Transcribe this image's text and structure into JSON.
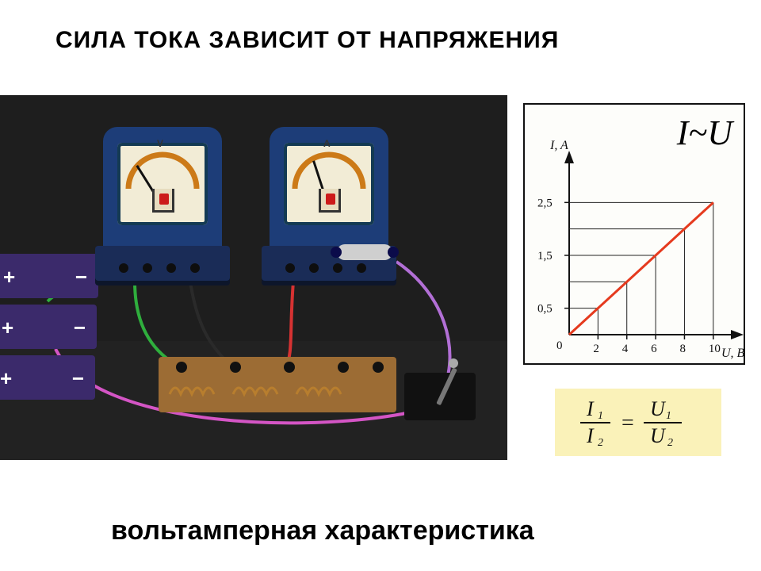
{
  "title": "СИЛА ТОКА  ЗАВИСИТ  ОТ НАПРЯЖЕНИЯ",
  "caption": "вольтамперная    характеристика",
  "relation_text": "I~U",
  "scene": {
    "background": "#1e1e1e",
    "batteries": {
      "fill": "#3b2a6b",
      "sign_color": "#ffffff",
      "plus": "+",
      "minus": "−",
      "count": 3
    },
    "meters": [
      {
        "letter": "V",
        "needle_deg": -32
      },
      {
        "letter": "A",
        "needle_deg": -18
      }
    ],
    "meter_colors": {
      "case": "#1d3d78",
      "base": "#1a2c57",
      "screen": "#f2ecd6",
      "arc": "#cc7a18"
    },
    "board_color": "#9c6c34",
    "coil_color": "#b87e2e",
    "wire_colors": {
      "green": "#2fae3d",
      "red": "#d63232",
      "black": "#2a2a2a",
      "purple": "#b26fd6",
      "magenta": "#d455c5",
      "white": "#e5e5e5"
    }
  },
  "chart": {
    "type": "line",
    "y_label": "I, A",
    "x_label": "U, B",
    "origin_label": "0",
    "x_ticks": [
      2,
      4,
      6,
      8,
      10
    ],
    "y_ticks": [
      0.5,
      1.5,
      2.5
    ],
    "y_tick_labels": [
      "0,5",
      "1,5",
      "2,5"
    ],
    "xlim": [
      0,
      11
    ],
    "ylim": [
      0,
      3
    ],
    "line_color": "#e53a1e",
    "line_width": 3,
    "guide_color": "#222222",
    "axis_color": "#111111",
    "background": "#fdfdfa",
    "label_fontsize": 16,
    "tick_fontsize": 15,
    "points": [
      {
        "x": 0,
        "y": 0
      },
      {
        "x": 2,
        "y": 0.5
      },
      {
        "x": 4,
        "y": 1.0
      },
      {
        "x": 6,
        "y": 1.5
      },
      {
        "x": 8,
        "y": 2.0
      },
      {
        "x": 10,
        "y": 2.5
      }
    ]
  },
  "formula": {
    "background": "#faf2b9",
    "text_color": "#111111",
    "I1": "I",
    "I1_sub": "1",
    "I2": "I",
    "I2_sub": "2",
    "U1": "U",
    "U1_sub": "1",
    "U2": "U",
    "U2_sub": "2",
    "eq": "="
  }
}
